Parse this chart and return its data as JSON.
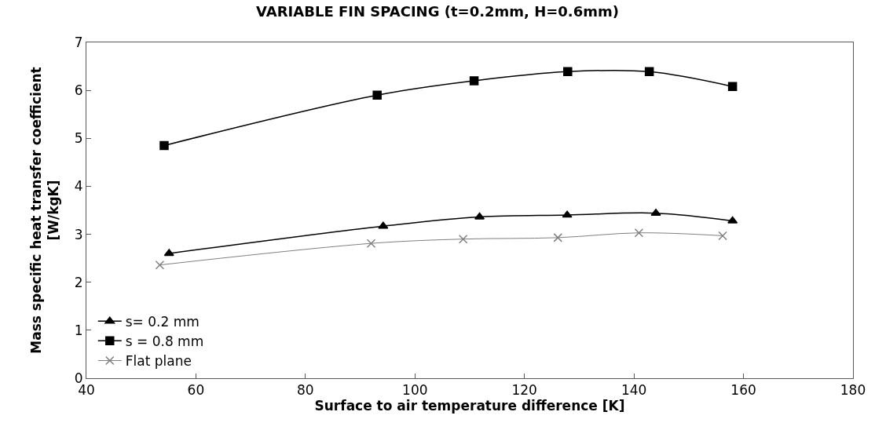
{
  "chart_data": {
    "type": "line",
    "title": "VARIABLE FIN SPACING (t=0.2mm, H=0.6mm)",
    "xlabel": "Surface to air temperature difference [K]",
    "ylabel": "Mass specific heat transfer coefficient\n[W/kgK]",
    "xlim": [
      40,
      180
    ],
    "xticks": [
      40,
      60,
      80,
      100,
      120,
      140,
      160,
      180
    ],
    "ylim": [
      0,
      7
    ],
    "yticks": [
      0,
      1,
      2,
      3,
      4,
      5,
      6,
      7
    ],
    "legend": "bottom left",
    "series": [
      {
        "name": "s= 0.2 mm",
        "color": "#000000",
        "marker": "triangle",
        "x": [
          55.1,
          94.2,
          111.8,
          127.8,
          144,
          158
        ],
        "values": [
          2.6,
          3.17,
          3.36,
          3.4,
          3.44,
          3.28
        ]
      },
      {
        "name": "s = 0.8 mm",
        "color": "#000000",
        "marker": "square",
        "x": [
          54.2,
          93.1,
          110.8,
          127.9,
          142.8,
          158
        ],
        "values": [
          4.85,
          5.9,
          6.2,
          6.39,
          6.39,
          6.08
        ]
      },
      {
        "name": "Flat plane",
        "color": "#808080",
        "marker": "cross",
        "x": [
          53.4,
          92,
          108.8,
          126.1,
          140.9,
          156.2
        ],
        "values": [
          2.36,
          2.81,
          2.9,
          2.93,
          3.03,
          2.97
        ]
      }
    ]
  }
}
